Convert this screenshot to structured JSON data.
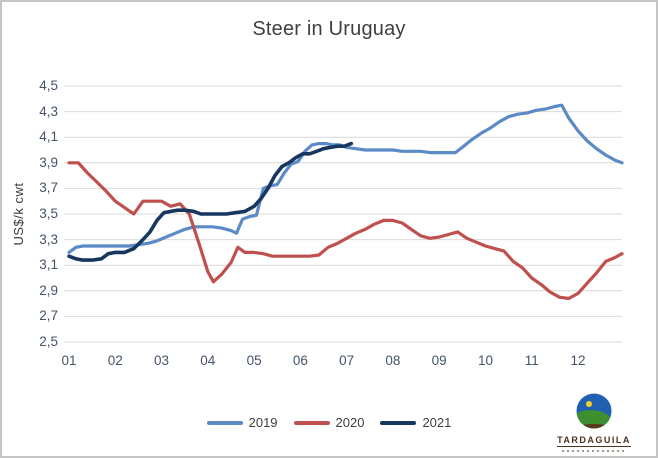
{
  "chart_data": {
    "type": "line",
    "title": "Steer in Uruguay",
    "xlabel": "",
    "ylabel": "US$/k cwt",
    "ylim": [
      2.5,
      4.5
    ],
    "ytick_step": 0.2,
    "decimal_separator": ",",
    "ytick_labels": [
      "4,5",
      "4,3",
      "4,1",
      "3,9",
      "3,7",
      "3,5",
      "3,3",
      "3,1",
      "2,9",
      "2,7",
      "2,5"
    ],
    "xtick_labels": [
      "01",
      "02",
      "03",
      "04",
      "05",
      "06",
      "07",
      "08",
      "09",
      "10",
      "11",
      "12"
    ],
    "grid": "horizontal",
    "gridline_color": "#d9d9d9",
    "legend_position": "bottom",
    "tick_label_color": "#44546a",
    "series": [
      {
        "name": "2019",
        "color": "#5b8ac6",
        "points": [
          [
            1.0,
            3.2
          ],
          [
            1.15,
            3.24
          ],
          [
            1.3,
            3.25
          ],
          [
            1.5,
            3.25
          ],
          [
            1.7,
            3.25
          ],
          [
            1.9,
            3.25
          ],
          [
            2.1,
            3.25
          ],
          [
            2.3,
            3.25
          ],
          [
            2.5,
            3.26
          ],
          [
            2.7,
            3.27
          ],
          [
            2.9,
            3.29
          ],
          [
            3.1,
            3.32
          ],
          [
            3.3,
            3.35
          ],
          [
            3.5,
            3.38
          ],
          [
            3.7,
            3.4
          ],
          [
            3.9,
            3.4
          ],
          [
            4.1,
            3.4
          ],
          [
            4.3,
            3.39
          ],
          [
            4.5,
            3.37
          ],
          [
            4.62,
            3.35
          ],
          [
            4.75,
            3.46
          ],
          [
            4.9,
            3.48
          ],
          [
            5.05,
            3.49
          ],
          [
            5.2,
            3.7
          ],
          [
            5.35,
            3.72
          ],
          [
            5.5,
            3.73
          ],
          [
            5.65,
            3.82
          ],
          [
            5.8,
            3.89
          ],
          [
            5.95,
            3.91
          ],
          [
            6.1,
            3.99
          ],
          [
            6.25,
            4.04
          ],
          [
            6.4,
            4.05
          ],
          [
            6.55,
            4.05
          ],
          [
            6.7,
            4.04
          ],
          [
            6.85,
            4.04
          ],
          [
            7.0,
            4.02
          ],
          [
            7.2,
            4.01
          ],
          [
            7.4,
            4.0
          ],
          [
            7.6,
            4.0
          ],
          [
            7.8,
            4.0
          ],
          [
            8.0,
            4.0
          ],
          [
            8.2,
            3.99
          ],
          [
            8.4,
            3.99
          ],
          [
            8.6,
            3.99
          ],
          [
            8.8,
            3.98
          ],
          [
            9.0,
            3.98
          ],
          [
            9.2,
            3.98
          ],
          [
            9.35,
            3.98
          ],
          [
            9.5,
            4.02
          ],
          [
            9.7,
            4.08
          ],
          [
            9.9,
            4.13
          ],
          [
            10.1,
            4.17
          ],
          [
            10.3,
            4.22
          ],
          [
            10.5,
            4.26
          ],
          [
            10.7,
            4.28
          ],
          [
            10.9,
            4.29
          ],
          [
            11.1,
            4.31
          ],
          [
            11.3,
            4.32
          ],
          [
            11.5,
            4.34
          ],
          [
            11.65,
            4.35
          ],
          [
            11.8,
            4.25
          ],
          [
            12.0,
            4.15
          ],
          [
            12.2,
            4.07
          ],
          [
            12.4,
            4.01
          ],
          [
            12.6,
            3.96
          ],
          [
            12.8,
            3.92
          ],
          [
            12.95,
            3.9
          ]
        ]
      },
      {
        "name": "2020",
        "color": "#c0504d",
        "points": [
          [
            1.0,
            3.9
          ],
          [
            1.2,
            3.9
          ],
          [
            1.4,
            3.82
          ],
          [
            1.6,
            3.75
          ],
          [
            1.8,
            3.68
          ],
          [
            2.0,
            3.6
          ],
          [
            2.2,
            3.55
          ],
          [
            2.4,
            3.5
          ],
          [
            2.6,
            3.6
          ],
          [
            2.8,
            3.6
          ],
          [
            3.0,
            3.6
          ],
          [
            3.2,
            3.56
          ],
          [
            3.4,
            3.58
          ],
          [
            3.6,
            3.5
          ],
          [
            3.8,
            3.28
          ],
          [
            4.0,
            3.05
          ],
          [
            4.12,
            2.97
          ],
          [
            4.3,
            3.03
          ],
          [
            4.5,
            3.12
          ],
          [
            4.65,
            3.24
          ],
          [
            4.8,
            3.2
          ],
          [
            5.0,
            3.2
          ],
          [
            5.2,
            3.19
          ],
          [
            5.4,
            3.17
          ],
          [
            5.6,
            3.17
          ],
          [
            5.8,
            3.17
          ],
          [
            6.0,
            3.17
          ],
          [
            6.2,
            3.17
          ],
          [
            6.4,
            3.18
          ],
          [
            6.6,
            3.24
          ],
          [
            6.8,
            3.27
          ],
          [
            7.0,
            3.31
          ],
          [
            7.2,
            3.35
          ],
          [
            7.4,
            3.38
          ],
          [
            7.6,
            3.42
          ],
          [
            7.8,
            3.45
          ],
          [
            8.0,
            3.45
          ],
          [
            8.2,
            3.43
          ],
          [
            8.4,
            3.38
          ],
          [
            8.6,
            3.33
          ],
          [
            8.8,
            3.31
          ],
          [
            9.0,
            3.32
          ],
          [
            9.2,
            3.34
          ],
          [
            9.4,
            3.36
          ],
          [
            9.6,
            3.31
          ],
          [
            9.8,
            3.28
          ],
          [
            10.0,
            3.25
          ],
          [
            10.2,
            3.23
          ],
          [
            10.4,
            3.21
          ],
          [
            10.6,
            3.13
          ],
          [
            10.8,
            3.08
          ],
          [
            11.0,
            3.0
          ],
          [
            11.2,
            2.95
          ],
          [
            11.4,
            2.89
          ],
          [
            11.6,
            2.85
          ],
          [
            11.8,
            2.84
          ],
          [
            12.0,
            2.88
          ],
          [
            12.2,
            2.96
          ],
          [
            12.4,
            3.04
          ],
          [
            12.6,
            3.13
          ],
          [
            12.8,
            3.16
          ],
          [
            12.95,
            3.19
          ]
        ]
      },
      {
        "name": "2021",
        "color": "#17375e",
        "points": [
          [
            1.0,
            3.17
          ],
          [
            1.15,
            3.15
          ],
          [
            1.3,
            3.14
          ],
          [
            1.5,
            3.14
          ],
          [
            1.7,
            3.15
          ],
          [
            1.85,
            3.19
          ],
          [
            2.0,
            3.2
          ],
          [
            2.2,
            3.2
          ],
          [
            2.4,
            3.23
          ],
          [
            2.6,
            3.3
          ],
          [
            2.75,
            3.36
          ],
          [
            2.9,
            3.45
          ],
          [
            3.05,
            3.51
          ],
          [
            3.2,
            3.52
          ],
          [
            3.35,
            3.53
          ],
          [
            3.5,
            3.53
          ],
          [
            3.7,
            3.52
          ],
          [
            3.85,
            3.5
          ],
          [
            4.0,
            3.5
          ],
          [
            4.2,
            3.5
          ],
          [
            4.4,
            3.5
          ],
          [
            4.6,
            3.51
          ],
          [
            4.8,
            3.52
          ],
          [
            5.0,
            3.56
          ],
          [
            5.15,
            3.62
          ],
          [
            5.3,
            3.7
          ],
          [
            5.45,
            3.8
          ],
          [
            5.6,
            3.87
          ],
          [
            5.75,
            3.9
          ],
          [
            5.9,
            3.94
          ],
          [
            6.05,
            3.97
          ],
          [
            6.2,
            3.97
          ],
          [
            6.35,
            3.99
          ],
          [
            6.5,
            4.01
          ],
          [
            6.65,
            4.02
          ],
          [
            6.8,
            4.03
          ],
          [
            6.95,
            4.03
          ],
          [
            7.1,
            4.05
          ]
        ]
      }
    ]
  },
  "logo": {
    "brand": "TARDAGUILA",
    "sky_color": "#2060b0",
    "hill_color": "#3d8f2f",
    "ground_color": "#5a3a1e",
    "sun_color": "#f5d327"
  }
}
